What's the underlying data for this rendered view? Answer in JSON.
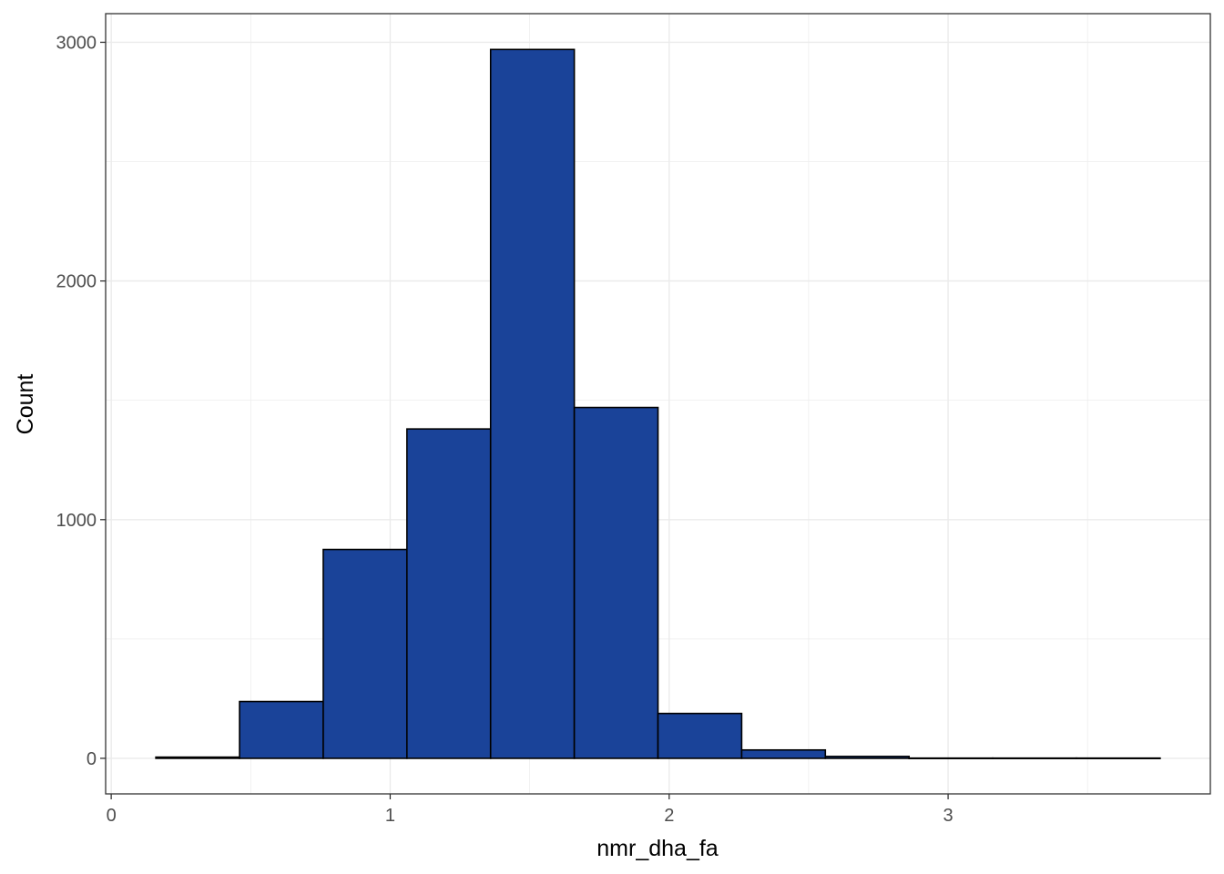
{
  "chart_data": {
    "type": "bar",
    "title": "",
    "xlabel": "nmr_dha_fa",
    "ylabel": "Count",
    "bins": [
      {
        "x0": 0.16,
        "x1": 0.46,
        "count": 5
      },
      {
        "x0": 0.46,
        "x1": 0.76,
        "count": 238
      },
      {
        "x0": 0.76,
        "x1": 1.06,
        "count": 875
      },
      {
        "x0": 1.06,
        "x1": 1.36,
        "count": 1380
      },
      {
        "x0": 1.36,
        "x1": 1.66,
        "count": 2970
      },
      {
        "x0": 1.66,
        "x1": 1.96,
        "count": 1470
      },
      {
        "x0": 1.96,
        "x1": 2.26,
        "count": 188
      },
      {
        "x0": 2.26,
        "x1": 2.56,
        "count": 35
      },
      {
        "x0": 2.56,
        "x1": 2.86,
        "count": 8
      },
      {
        "x0": 2.86,
        "x1": 3.16,
        "count": 1
      },
      {
        "x0": 3.16,
        "x1": 3.46,
        "count": 1
      },
      {
        "x0": 3.46,
        "x1": 3.76,
        "count": 1
      }
    ],
    "xlim": [
      -0.02,
      3.94
    ],
    "ylim": [
      -149,
      3120
    ],
    "x_ticks": [
      0,
      1,
      2,
      3
    ],
    "x_tick_labels": [
      "0",
      "1",
      "2",
      "3"
    ],
    "y_ticks": [
      0,
      1000,
      2000,
      3000
    ],
    "y_tick_labels": [
      "0",
      "1000",
      "2000",
      "3000"
    ],
    "grid": true,
    "legend": "none",
    "bar_fill": "#1a4399",
    "bar_stroke": "#000000",
    "grid_color": "#ebebeb"
  }
}
